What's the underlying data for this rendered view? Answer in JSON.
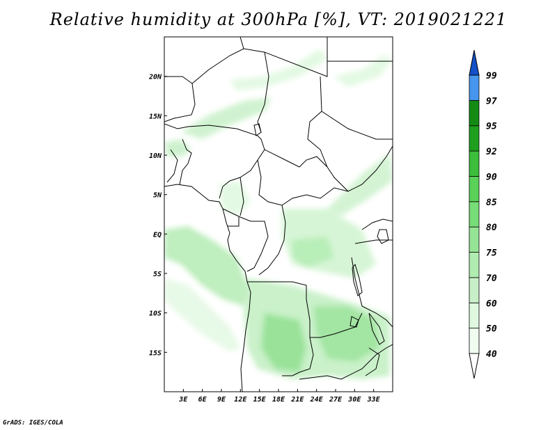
{
  "title": "Relative humidity at 300hPa [%], VT: 2019021221",
  "credit": "GrADS: IGES/COLA",
  "map": {
    "lon_range": [
      0,
      36
    ],
    "lat_range": [
      -20,
      25
    ],
    "lon_ticks": [
      "3E",
      "6E",
      "9E",
      "12E",
      "15E",
      "18E",
      "21E",
      "24E",
      "27E",
      "30E",
      "33E"
    ],
    "lat_ticks": [
      "20N",
      "15N",
      "10N",
      "5N",
      "EQ",
      "5S",
      "10S",
      "15S"
    ]
  },
  "colorbar": {
    "levels": [
      "40",
      "50",
      "60",
      "70",
      "75",
      "80",
      "85",
      "90",
      "92",
      "95",
      "97",
      "99"
    ],
    "colors": [
      "#f0fcf0",
      "#e0f8e0",
      "#c8f0c8",
      "#b0ecb0",
      "#96e496",
      "#78dc78",
      "#5ad25a",
      "#3cbe3c",
      "#1ea01e",
      "#148c14",
      "#4696f0",
      "#2873dc",
      "#1450c8"
    ]
  }
}
